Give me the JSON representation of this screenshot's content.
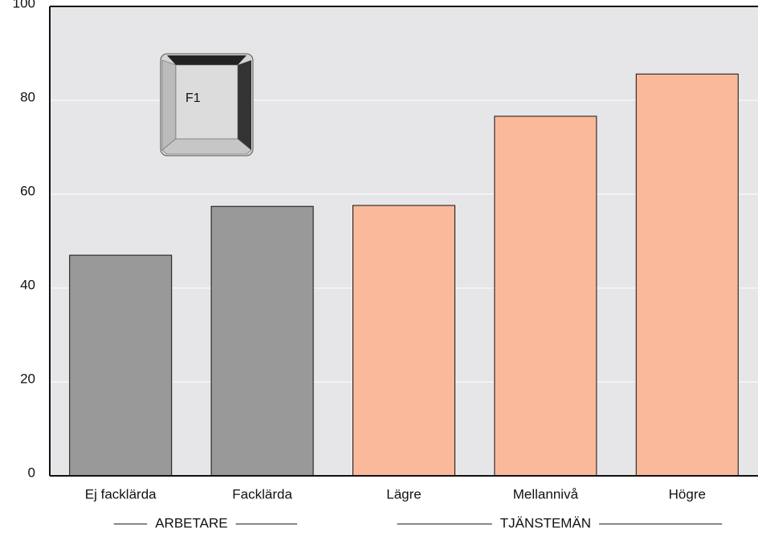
{
  "chart_data": {
    "type": "bar",
    "categories": [
      "Ej facklärda",
      "Facklärda",
      "Lägre",
      "Mellannivå",
      "Högre"
    ],
    "values": [
      47,
      57.4,
      57.6,
      76.6,
      85.6
    ],
    "colors": [
      "#999999",
      "#999999",
      "#f9b99a",
      "#f9b99a",
      "#f9b99a"
    ],
    "groups": [
      {
        "label": "ARBETARE",
        "categories": [
          "Ej facklärda",
          "Facklärda"
        ]
      },
      {
        "label": "TJÄNSTEMÄN",
        "categories": [
          "Lägre",
          "Mellannivå",
          "Högre"
        ]
      }
    ],
    "ylim": [
      0,
      100
    ],
    "yticks": [
      0,
      20,
      40,
      60,
      80,
      100
    ],
    "grid": true,
    "key_label": "F1"
  }
}
